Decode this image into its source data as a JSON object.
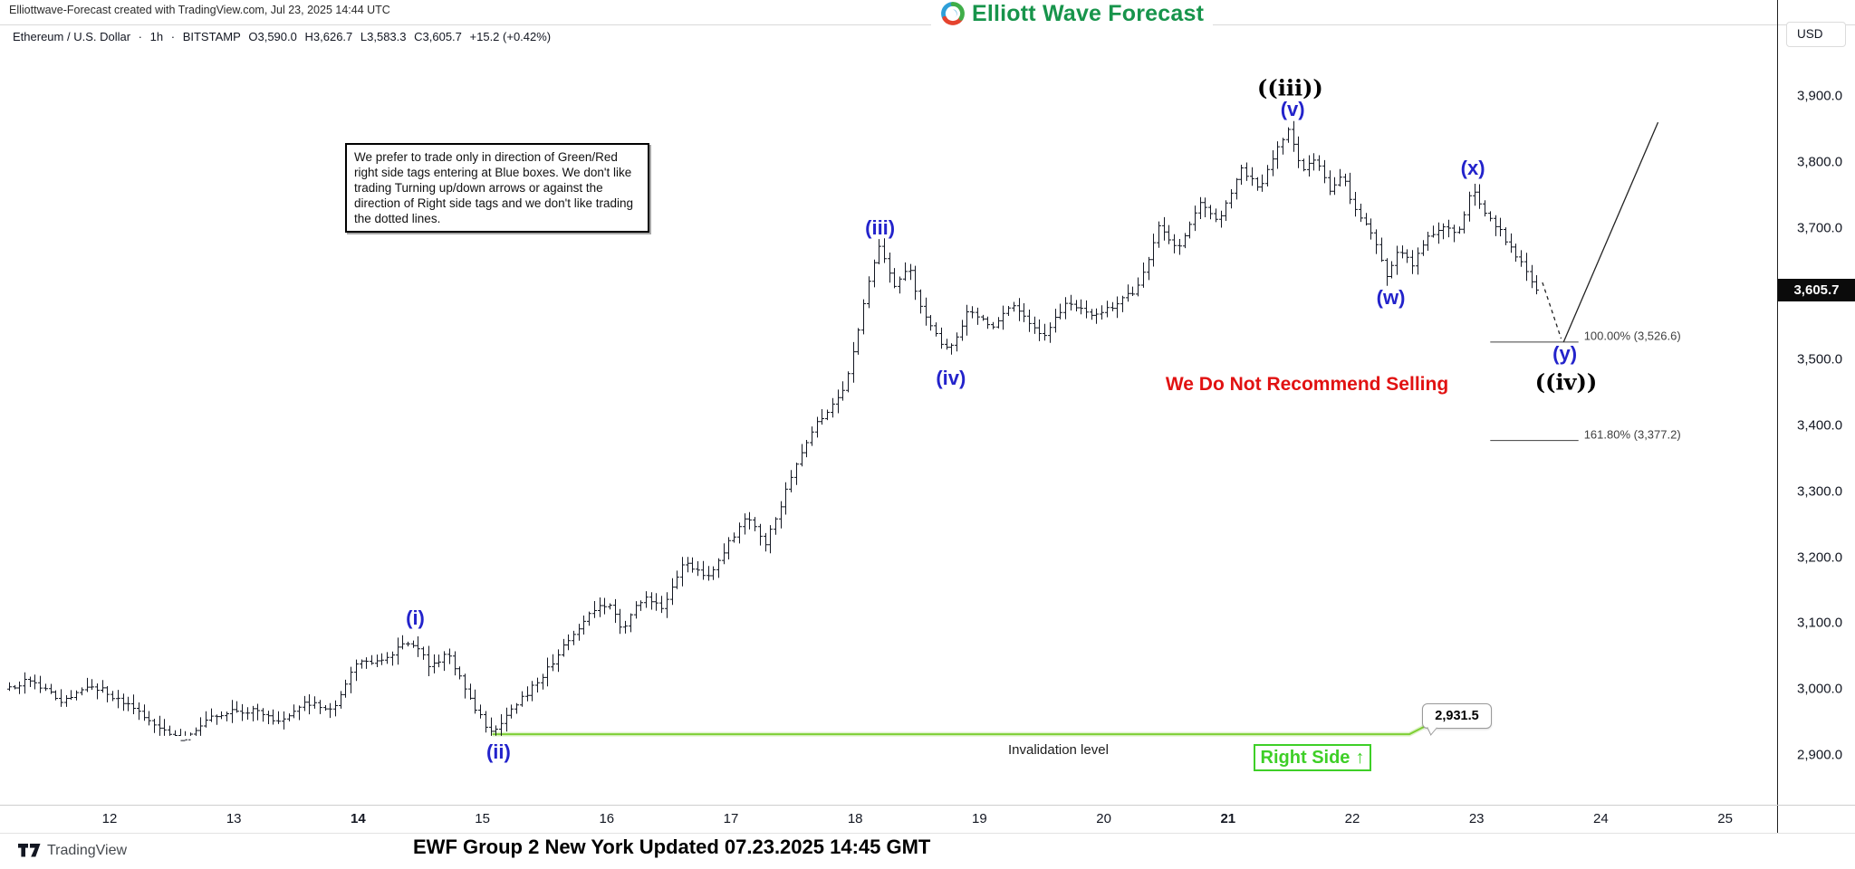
{
  "header": {
    "export_note": "Elliottwave-Forecast created with TradingView.com, Jul 23, 2025 14:44 UTC",
    "brand": "Elliott Wave Forecast",
    "symbol": "Ethereum / U.S. Dollar",
    "sep": "·",
    "interval": "1h",
    "exchange": "BITSTAMP",
    "open": "O3,590.0",
    "high": "H3,626.7",
    "low": "L3,583.3",
    "close": "C3,605.7",
    "change": "+15.2 (+0.42%)"
  },
  "axis": {
    "currency": "USD",
    "price_ticks": [
      {
        "label": "3,900.0",
        "value": 3900
      },
      {
        "label": "3,800.0",
        "value": 3800
      },
      {
        "label": "3,700.0",
        "value": 3700
      },
      {
        "label": "3,500.0",
        "value": 3500
      },
      {
        "label": "3,400.0",
        "value": 3400
      },
      {
        "label": "3,300.0",
        "value": 3300
      },
      {
        "label": "3,200.0",
        "value": 3200
      },
      {
        "label": "3,100.0",
        "value": 3100
      },
      {
        "label": "3,000.0",
        "value": 3000
      },
      {
        "label": "2,900.0",
        "value": 2900
      }
    ],
    "current_price": {
      "label": "3,605.7",
      "value": 3605.7
    },
    "time_ticks": [
      {
        "label": "12",
        "value": 12,
        "bold": false
      },
      {
        "label": "13",
        "value": 13,
        "bold": false
      },
      {
        "label": "14",
        "value": 14,
        "bold": true
      },
      {
        "label": "15",
        "value": 15,
        "bold": false
      },
      {
        "label": "16",
        "value": 16,
        "bold": false
      },
      {
        "label": "17",
        "value": 17,
        "bold": false
      },
      {
        "label": "18",
        "value": 18,
        "bold": false
      },
      {
        "label": "19",
        "value": 19,
        "bold": false
      },
      {
        "label": "20",
        "value": 20,
        "bold": false
      },
      {
        "label": "21",
        "value": 21,
        "bold": true
      },
      {
        "label": "22",
        "value": 22,
        "bold": false
      },
      {
        "label": "23",
        "value": 23,
        "bold": false
      },
      {
        "label": "24",
        "value": 24,
        "bold": false
      },
      {
        "label": "25",
        "value": 25,
        "bold": false
      }
    ]
  },
  "annotations": {
    "note_box": "We prefer to trade only in direction of Green/Red right side tags entering at Blue boxes. We don't like trading Turning up/down arrows or against the direction of Right side tags and we don't like trading the dotted lines.",
    "no_sell_text": "We Do Not Recommend Selling",
    "invalidation_label": "Invalidation level",
    "invalidation_price": "2,931.5",
    "right_side_label": "Right Side",
    "right_side_arrow": "↑",
    "fib_100_label": "100.00% (3,526.6)",
    "fib_161_label": "161.80% (3,377.2)",
    "wave_labels": [
      {
        "text": "(i)",
        "day": 14.46,
        "price": 3107,
        "style": "blue"
      },
      {
        "text": "(ii)",
        "day": 15.13,
        "price": 2904,
        "style": "blue"
      },
      {
        "text": "(iii)",
        "day": 18.2,
        "price": 3700,
        "style": "blue"
      },
      {
        "text": "(iv)",
        "day": 18.77,
        "price": 3471,
        "style": "blue"
      },
      {
        "text": "((iii))",
        "day": 21.5,
        "price": 3912,
        "style": "black"
      },
      {
        "text": "(v)",
        "day": 21.52,
        "price": 3879,
        "style": "blue"
      },
      {
        "text": "(w)",
        "day": 22.31,
        "price": 3594,
        "style": "blue"
      },
      {
        "text": "(x)",
        "day": 22.97,
        "price": 3790,
        "style": "blue"
      },
      {
        "text": "(y)",
        "day": 23.71,
        "price": 3508,
        "style": "blue"
      },
      {
        "text": "((iv))",
        "day": 23.72,
        "price": 3466,
        "style": "black"
      }
    ]
  },
  "footer": {
    "update_line": "EWF Group 2 New York Updated 07.23.2025 14:45 GMT",
    "tradingview_label": "TradingView"
  },
  "chart_data": {
    "type": "ohlc-bar",
    "title": "Ethereum / U.S. Dollar, 1h, BITSTAMP",
    "x_axis": {
      "unit": "day of July 2025",
      "ticks": [
        12,
        13,
        14,
        15,
        16,
        17,
        18,
        19,
        20,
        21,
        22,
        23,
        24,
        25
      ],
      "bold_ticks": [
        14,
        21
      ]
    },
    "y_axis": {
      "unit": "USD",
      "min": 2860,
      "max": 3940,
      "ticks": [
        3900,
        3800,
        3700,
        3500,
        3400,
        3300,
        3200,
        3100,
        3000,
        2900
      ]
    },
    "current": {
      "open": 3590.0,
      "high": 3626.7,
      "low": 3583.3,
      "close": 3605.7,
      "change": 15.2,
      "change_pct": 0.42
    },
    "key_points": [
      {
        "wave": "(i)",
        "day": 14.46,
        "price": 3072
      },
      {
        "wave": "(ii)",
        "day": 15.1,
        "price": 2931.5
      },
      {
        "wave": "(iii)",
        "day": 18.22,
        "price": 3674
      },
      {
        "wave": "(iv)",
        "day": 18.79,
        "price": 3510
      },
      {
        "wave": "(v) = ((iii))",
        "day": 21.53,
        "price": 3850
      },
      {
        "wave": "(w)",
        "day": 22.31,
        "price": 3625
      },
      {
        "wave": "(x)",
        "day": 23.0,
        "price": 3762
      },
      {
        "wave": "(y) projected",
        "day": 23.7,
        "price": 3526.6
      }
    ],
    "levels": {
      "invalidation": {
        "price": 2931.5,
        "from_day": 15.08,
        "to_day": 22.46,
        "color": "#7fcf35"
      },
      "fib_100": {
        "price": 3526.6,
        "from_day": 23.11,
        "to_day": 23.82
      },
      "fib_161": {
        "price": 3377.2,
        "from_day": 23.11,
        "to_day": 23.82
      }
    },
    "projection": {
      "dashed": {
        "from": [
          23.53,
          3617
        ],
        "to": [
          23.68,
          3532
        ]
      },
      "line": {
        "from": [
          23.7,
          3526.6
        ],
        "to": [
          24.46,
          3860
        ]
      }
    },
    "waypoints": [
      [
        11.19,
        3000
      ],
      [
        11.41,
        3015
      ],
      [
        11.66,
        2980
      ],
      [
        11.88,
        3008
      ],
      [
        12.1,
        2985
      ],
      [
        12.32,
        2958
      ],
      [
        12.63,
        2922
      ],
      [
        12.9,
        2962
      ],
      [
        13.2,
        2968
      ],
      [
        13.41,
        2948
      ],
      [
        13.63,
        2980
      ],
      [
        13.82,
        2965
      ],
      [
        14.03,
        3038
      ],
      [
        14.25,
        3048
      ],
      [
        14.46,
        3072
      ],
      [
        14.62,
        3035
      ],
      [
        14.76,
        3055
      ],
      [
        14.91,
        2995
      ],
      [
        15.1,
        2931.5
      ],
      [
        15.31,
        2978
      ],
      [
        15.49,
        3012
      ],
      [
        15.7,
        3065
      ],
      [
        15.91,
        3118
      ],
      [
        16.07,
        3132
      ],
      [
        16.16,
        3088
      ],
      [
        16.33,
        3140
      ],
      [
        16.48,
        3125
      ],
      [
        16.67,
        3192
      ],
      [
        16.86,
        3170
      ],
      [
        17.17,
        3268
      ],
      [
        17.31,
        3215
      ],
      [
        17.5,
        3310
      ],
      [
        17.68,
        3390
      ],
      [
        17.82,
        3425
      ],
      [
        17.95,
        3455
      ],
      [
        18.22,
        3674
      ],
      [
        18.35,
        3612
      ],
      [
        18.47,
        3640
      ],
      [
        18.59,
        3565
      ],
      [
        18.79,
        3510
      ],
      [
        18.95,
        3575
      ],
      [
        19.14,
        3548
      ],
      [
        19.32,
        3585
      ],
      [
        19.55,
        3535
      ],
      [
        19.76,
        3590
      ],
      [
        19.94,
        3565
      ],
      [
        20.16,
        3585
      ],
      [
        20.32,
        3610
      ],
      [
        20.48,
        3700
      ],
      [
        20.63,
        3665
      ],
      [
        20.81,
        3735
      ],
      [
        20.97,
        3712
      ],
      [
        21.14,
        3790
      ],
      [
        21.29,
        3760
      ],
      [
        21.41,
        3810
      ],
      [
        21.53,
        3850
      ],
      [
        21.63,
        3782
      ],
      [
        21.74,
        3805
      ],
      [
        21.85,
        3758
      ],
      [
        21.96,
        3778
      ],
      [
        22.07,
        3725
      ],
      [
        22.18,
        3700
      ],
      [
        22.31,
        3625
      ],
      [
        22.42,
        3668
      ],
      [
        22.52,
        3645
      ],
      [
        22.65,
        3688
      ],
      [
        22.78,
        3705
      ],
      [
        22.89,
        3690
      ],
      [
        23.0,
        3762
      ],
      [
        23.11,
        3718
      ],
      [
        23.22,
        3700
      ],
      [
        23.3,
        3672
      ],
      [
        23.4,
        3650
      ],
      [
        23.51,
        3606
      ]
    ],
    "bar_time_range": [
      11.19,
      23.51
    ],
    "bars_per_day": 24
  }
}
